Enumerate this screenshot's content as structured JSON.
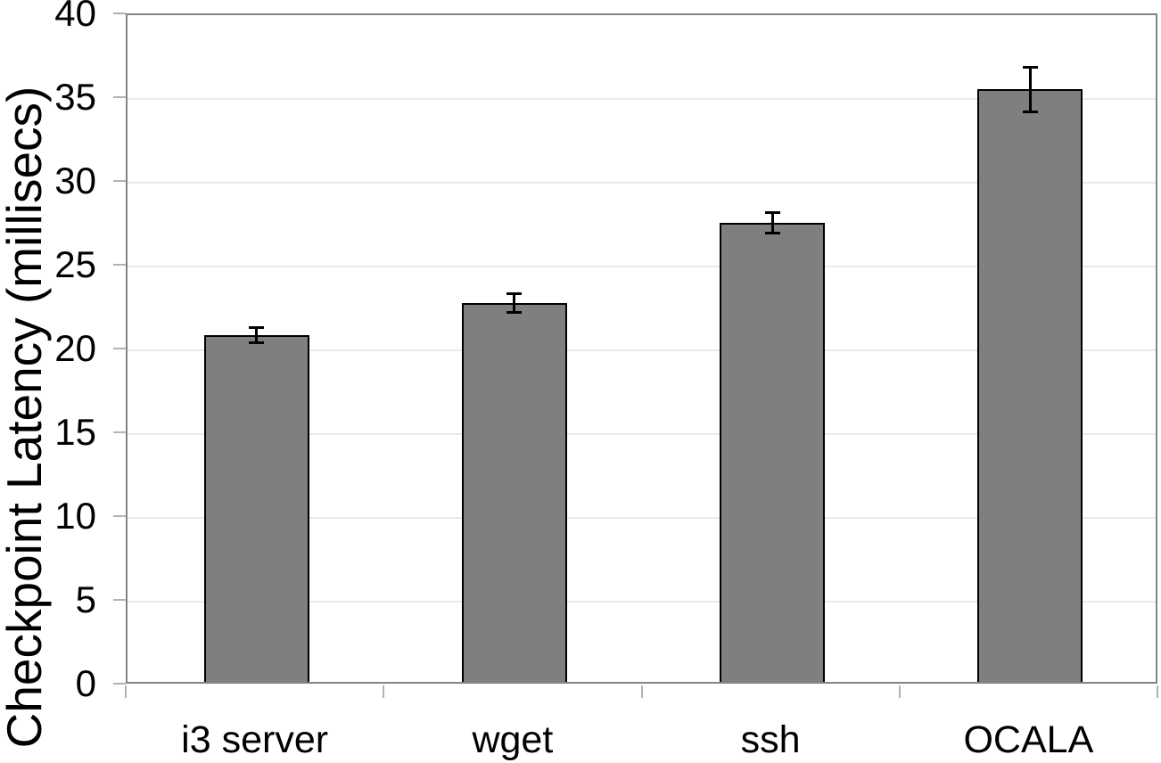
{
  "chart_data": {
    "type": "bar",
    "categories": [
      "i3 server",
      "wget",
      "ssh",
      "OCALA"
    ],
    "values": [
      20.7,
      22.6,
      27.4,
      35.35
    ],
    "error_bars": [
      0.45,
      0.55,
      0.6,
      1.35
    ],
    "title": "",
    "xlabel": "",
    "ylabel": "Checkpoint Latency (millisecs)",
    "ylim": [
      0,
      40
    ],
    "ytick_step": 5,
    "ytick_labels": [
      "0",
      "5",
      "10",
      "15",
      "20",
      "25",
      "30",
      "35",
      "40"
    ],
    "grid": "horizontal",
    "legend": "none",
    "colors": {
      "bar_fill": "#7f7f7f",
      "bar_border": "#000000",
      "error_bar": "#000000",
      "gridline": "#eaeaea",
      "frame": "#848484",
      "tick": "#b3b3b3",
      "text": "#000000",
      "background": "#ffffff"
    }
  }
}
